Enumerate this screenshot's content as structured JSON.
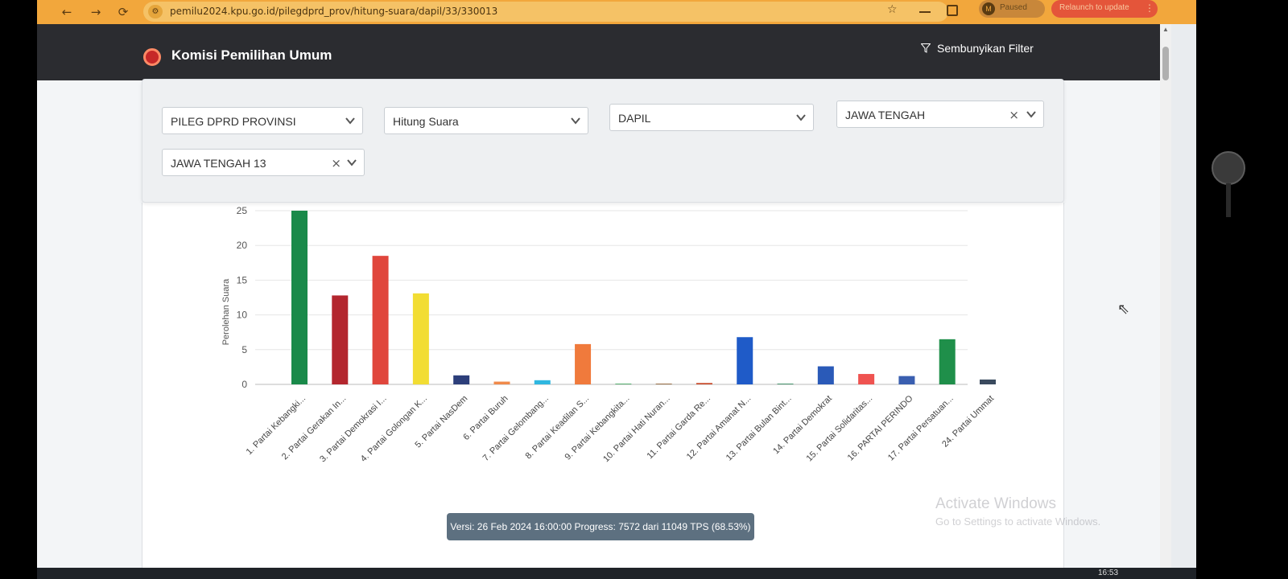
{
  "browser": {
    "url": "pemilu2024.kpu.go.id/pilegdprd_prov/hitung-suara/dapil/33/330013",
    "profile_initial": "M",
    "profile_label": "Paused",
    "relaunch_label": "Relaunch to update"
  },
  "header": {
    "title": "Komisi Pemilihan Umum",
    "filter_toggle_label": "Sembunyikan Filter"
  },
  "filters": {
    "election_type": "PILEG DPRD PROVINSI",
    "mode": "Hitung Suara",
    "level": "DAPIL",
    "province": "JAWA TENGAH",
    "dapil": "JAWA TENGAH 13"
  },
  "chart_data": {
    "type": "bar",
    "ylabel": "Perolehan Suara",
    "ylim": [
      0,
      25
    ],
    "yticks": [
      0,
      5,
      10,
      15,
      20,
      25
    ],
    "grid": true,
    "categories": [
      "1. Partai Kebangki...",
      "2. Partai Gerakan In...",
      "3. Partai Demokrasi I...",
      "4. Partai Golongan K...",
      "5. Partai NasDem",
      "6. Partai Buruh",
      "7. Partai Gelombang...",
      "8. Partai Keadilan S...",
      "9. Partai Kebangkita...",
      "10. Partai Hati Nuran...",
      "11. Partai Garda Re...",
      "12. Partai Amanat N...",
      "13. Partai Bulan Bint...",
      "14. Partai Demokrat",
      "15. Partai Solidaritas...",
      "16. PARTAI PERINDO",
      "17. Partai Persatuan...",
      "24. Partai Ummat"
    ],
    "values": [
      26.5,
      12.8,
      18.5,
      13.1,
      1.3,
      0.4,
      0.6,
      5.8,
      0.05,
      0.1,
      0.2,
      6.8,
      0.05,
      2.6,
      1.5,
      1.2,
      6.5,
      0.7
    ],
    "colors": [
      "#1a8a4a",
      "#b3262e",
      "#e0463c",
      "#f2dd33",
      "#2c3e7a",
      "#f08a4b",
      "#2fb7e0",
      "#f07a3c",
      "#2a9a4a",
      "#8a5a2a",
      "#c84a2a",
      "#1f5bc8",
      "#1a7a4a",
      "#2a5ab8",
      "#ef5350",
      "#3a5fb0",
      "#1f8f4a",
      "#3a4a5e"
    ]
  },
  "footer": {
    "version_text": "Versi: 26 Feb 2024 16:00:00 Progress: 7572 dari 11049 TPS (68.53%)",
    "watermark_title": "Activate Windows",
    "watermark_sub": "Go to Settings to activate Windows.",
    "clock": "16:53"
  }
}
